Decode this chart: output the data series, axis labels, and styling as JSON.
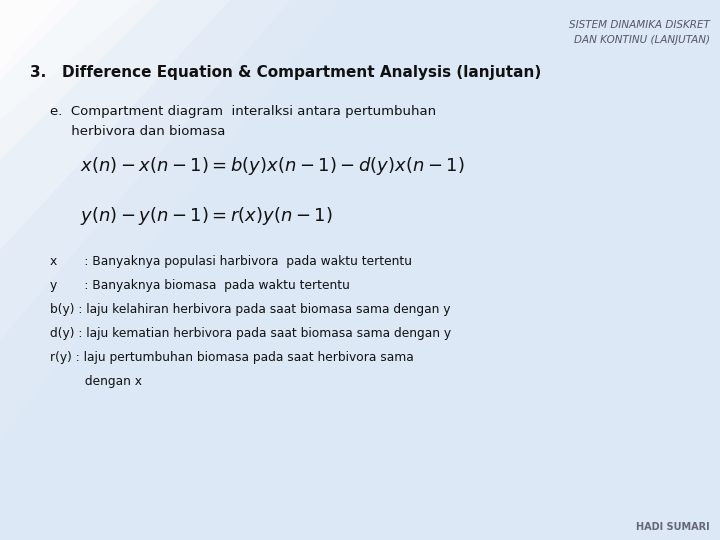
{
  "bg_color": "#dce8f5",
  "title_top_right": "SISTEM DINAMIKA DISKRET\nDAN KONTINU (LANJUTAN)",
  "heading": "3.   Difference Equation & Compartment Analysis (lanjutan)",
  "subheading_e": "e.  Compartment diagram  interalksi antara pertumbuhan",
  "subheading_2": "     herbivora dan biomasa",
  "eq1": "$x(n)-x(n-1)=b(y)x(n-1)-d(y)x(n-1)$",
  "eq2": "$y(n)-y(n-1)=r(x)y(n-1)$",
  "legend_lines": [
    "x       : Banyaknya populasi harbivora  pada waktu tertentu",
    "y       : Banyaknya biomasa  pada waktu tertentu",
    "b(y) : laju kelahiran herbivora pada saat biomasa sama dengan y",
    "d(y) : laju kematian herbivora pada saat biomasa sama dengan y",
    "r(y) : laju pertumbuhan biomasa pada saat herbivora sama",
    "         dengan x"
  ],
  "footer": "HADI SUMARI",
  "text_color": "#111111",
  "heading_color": "#111111",
  "top_right_color": "#555566",
  "footer_color": "#666677"
}
